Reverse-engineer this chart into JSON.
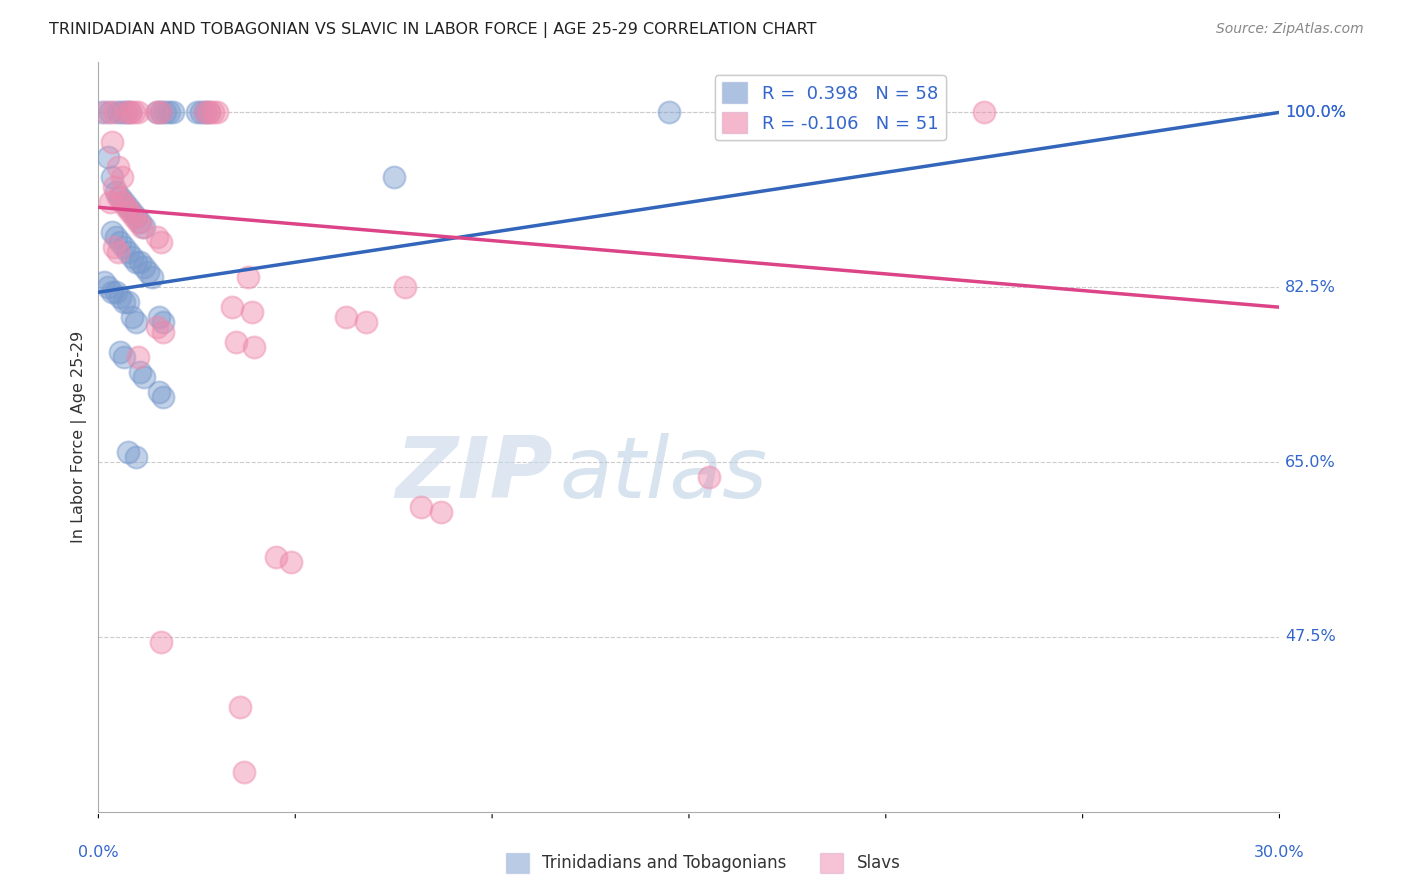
{
  "title": "TRINIDADIAN AND TOBAGONIAN VS SLAVIC IN LABOR FORCE | AGE 25-29 CORRELATION CHART",
  "source": "Source: ZipAtlas.com",
  "ylabel": "In Labor Force | Age 25-29",
  "ylabel_ticks": [
    47.5,
    65.0,
    82.5,
    100.0
  ],
  "xmin": 0.0,
  "xmax": 30.0,
  "ymin": 30.0,
  "ymax": 105.0,
  "legend1_color": "#7799cc",
  "legend2_color": "#ee88aa",
  "bottom_legend": [
    "Trinidadians and Tobagonians",
    "Slavs"
  ],
  "blue_line_color": "#3366bb",
  "pink_line_color": "#dd4488",
  "grid_color": "#cccccc",
  "bg_color": "#ffffff",
  "title_color": "#222222",
  "axis_label_color": "#3366cc",
  "blue_scatter": [
    [
      0.1,
      100.0
    ],
    [
      0.3,
      100.0
    ],
    [
      0.5,
      100.0
    ],
    [
      0.6,
      100.0
    ],
    [
      0.7,
      100.0
    ],
    [
      0.8,
      100.0
    ],
    [
      1.5,
      100.0
    ],
    [
      1.6,
      100.0
    ],
    [
      1.7,
      100.0
    ],
    [
      1.8,
      100.0
    ],
    [
      1.9,
      100.0
    ],
    [
      2.5,
      100.0
    ],
    [
      2.6,
      100.0
    ],
    [
      2.7,
      100.0
    ],
    [
      2.8,
      100.0
    ],
    [
      14.5,
      100.0
    ],
    [
      0.25,
      95.5
    ],
    [
      0.35,
      93.5
    ],
    [
      0.45,
      92.0
    ],
    [
      0.55,
      91.5
    ],
    [
      0.65,
      91.0
    ],
    [
      0.75,
      90.5
    ],
    [
      0.85,
      90.0
    ],
    [
      0.95,
      89.5
    ],
    [
      1.05,
      89.0
    ],
    [
      1.15,
      88.5
    ],
    [
      0.35,
      88.0
    ],
    [
      0.45,
      87.5
    ],
    [
      0.55,
      87.0
    ],
    [
      0.65,
      86.5
    ],
    [
      0.75,
      86.0
    ],
    [
      0.85,
      85.5
    ],
    [
      0.95,
      85.0
    ],
    [
      1.05,
      85.0
    ],
    [
      1.15,
      84.5
    ],
    [
      1.25,
      84.0
    ],
    [
      1.35,
      83.5
    ],
    [
      0.15,
      83.0
    ],
    [
      0.25,
      82.5
    ],
    [
      0.35,
      82.0
    ],
    [
      0.45,
      82.0
    ],
    [
      0.55,
      81.5
    ],
    [
      0.65,
      81.0
    ],
    [
      0.75,
      81.0
    ],
    [
      0.85,
      79.5
    ],
    [
      0.95,
      79.0
    ],
    [
      1.55,
      79.5
    ],
    [
      1.65,
      79.0
    ],
    [
      0.55,
      76.0
    ],
    [
      0.65,
      75.5
    ],
    [
      1.05,
      74.0
    ],
    [
      1.15,
      73.5
    ],
    [
      1.55,
      72.0
    ],
    [
      1.65,
      71.5
    ],
    [
      0.75,
      66.0
    ],
    [
      0.95,
      65.5
    ],
    [
      7.5,
      93.5
    ]
  ],
  "pink_scatter": [
    [
      0.2,
      100.0
    ],
    [
      0.4,
      100.0
    ],
    [
      0.7,
      100.0
    ],
    [
      0.8,
      100.0
    ],
    [
      0.9,
      100.0
    ],
    [
      1.0,
      100.0
    ],
    [
      1.5,
      100.0
    ],
    [
      1.6,
      100.0
    ],
    [
      2.7,
      100.0
    ],
    [
      2.8,
      100.0
    ],
    [
      2.9,
      100.0
    ],
    [
      3.0,
      100.0
    ],
    [
      22.5,
      100.0
    ],
    [
      0.35,
      97.0
    ],
    [
      0.5,
      94.5
    ],
    [
      0.6,
      93.5
    ],
    [
      0.4,
      92.5
    ],
    [
      0.5,
      91.5
    ],
    [
      0.6,
      91.0
    ],
    [
      0.7,
      90.5
    ],
    [
      0.8,
      90.0
    ],
    [
      0.9,
      89.5
    ],
    [
      1.0,
      89.0
    ],
    [
      1.1,
      88.5
    ],
    [
      1.5,
      87.5
    ],
    [
      1.6,
      87.0
    ],
    [
      0.4,
      86.5
    ],
    [
      0.5,
      86.0
    ],
    [
      0.3,
      91.0
    ],
    [
      3.8,
      83.5
    ],
    [
      7.8,
      82.5
    ],
    [
      3.4,
      80.5
    ],
    [
      3.9,
      80.0
    ],
    [
      6.3,
      79.5
    ],
    [
      6.8,
      79.0
    ],
    [
      1.5,
      78.5
    ],
    [
      1.65,
      78.0
    ],
    [
      3.5,
      77.0
    ],
    [
      3.95,
      76.5
    ],
    [
      1.0,
      75.5
    ],
    [
      15.5,
      63.5
    ],
    [
      8.2,
      60.5
    ],
    [
      8.7,
      60.0
    ],
    [
      4.5,
      55.5
    ],
    [
      4.9,
      55.0
    ],
    [
      1.6,
      47.0
    ],
    [
      3.6,
      40.5
    ],
    [
      3.7,
      34.0
    ]
  ]
}
